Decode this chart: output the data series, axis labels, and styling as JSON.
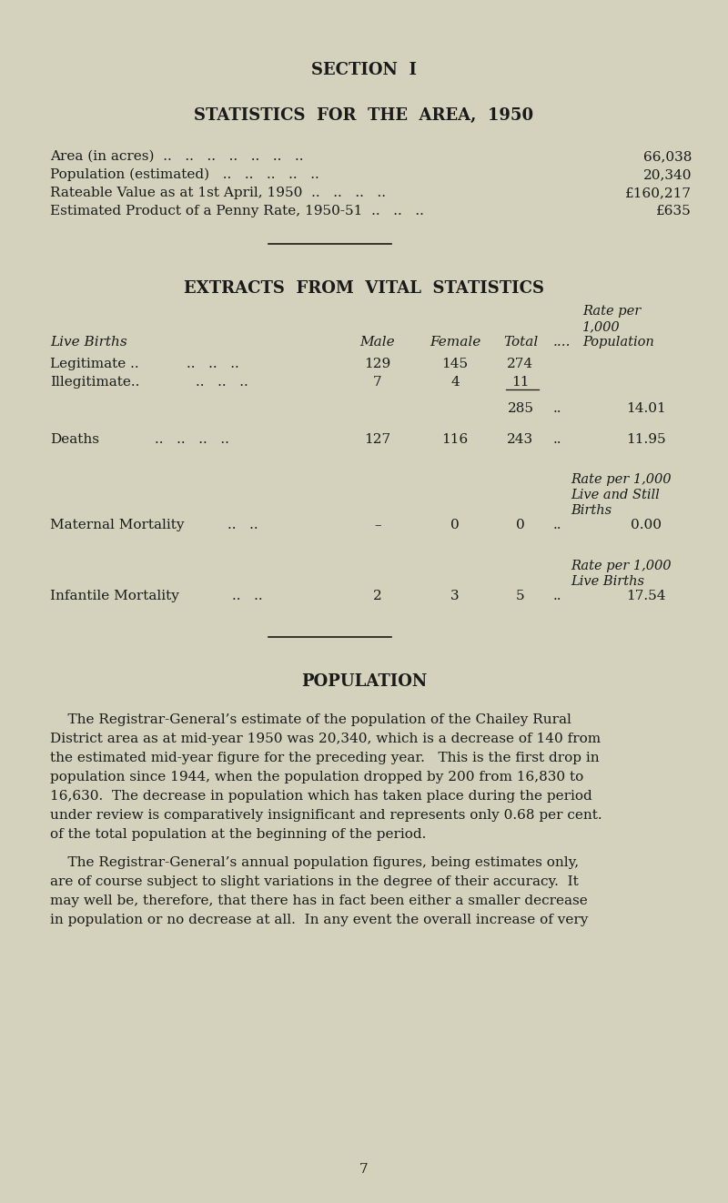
{
  "bg_color": "#d4d1bc",
  "text_color": "#1a1a1a",
  "section_title": "SECTION  I",
  "stats_title": "STATISTICS  FOR  THE  AREA,  1950",
  "stats_rows": [
    {
      "label": "Area (in acres)  ..   ..   ..   ..   ..   ..   ..",
      "value": "66,038"
    },
    {
      "label": "Population (estimated)   ..   ..   ..   ..   ..",
      "value": "20,340"
    },
    {
      "label": "Rateable Value as at 1st April, 1950  ..   ..   ..   ..",
      "value": "£160,217"
    },
    {
      "label": "Estimated Product of a Penny Rate, 1950-51  ..   ..   ..",
      "value": "£635"
    }
  ],
  "vital_title": "EXTRACTS  FROM  VITAL  STATISTICS",
  "live_births_label": "Live Births",
  "vital_header_rate": "Rate per",
  "vital_header_1000": "1,000",
  "vital_header_pop": "Population",
  "legitimate_label": "Legitimate ..",
  "legitimate_dots": "..   ..   ..",
  "legitimate_vals": [
    "129",
    "145",
    "274"
  ],
  "illegitimate_label": "Illegitimate..",
  "illegitimate_dots": "..   ..   ..",
  "illegitimate_vals": [
    "7",
    "4",
    "11"
  ],
  "subtotal_val": "285",
  "subtotal_dots": "..",
  "subtotal_rate": "14.01",
  "deaths_label": "Deaths",
  "deaths_dots": "..   ..   ..   ..",
  "deaths_vals": [
    "127",
    "116",
    "243"
  ],
  "deaths_dots2": "..",
  "deaths_rate": "11.95",
  "maternal_header1": "Rate per 1,000",
  "maternal_header2": "Live and Still",
  "maternal_header3": "Births",
  "maternal_label": "Maternal Mortality",
  "maternal_dots": "..   ..",
  "maternal_vals": [
    "–",
    "0",
    "0"
  ],
  "maternal_dots2": "..",
  "maternal_rate": "0.00",
  "infantile_header1": "Rate per 1,000",
  "infantile_header2": "Live Births",
  "infantile_label": "Infantile Mortality",
  "infantile_dots": "..   ..",
  "infantile_vals": [
    "2",
    "3",
    "5"
  ],
  "infantile_dots2": "..",
  "infantile_rate": "17.54",
  "pop_title": "POPULATION",
  "pop_para1": "The Registrar-General’s estimate of the population of the Chailey Rural District area as at mid-year 1950 was 20,340, which is a decrease of 140 from the estimated mid-year figure for the preceding year.   This is the first drop in population since 1944, when the population dropped by 200 from 16,830 to 16,630.  The decrease in population which has taken place during the period under review is comparatively insignificant and represents only 0.68 per cent. of the total population at the beginning of the period.",
  "pop_para2": "The Registrar-General’s annual population figures, being estimates only, are of course subject to slight variations in the degree of their accuracy.  It may well be, therefore, that there has in fact been either a smaller decrease in population or no decrease at all.  In any event the overall increase of very",
  "page_number": "7",
  "figwidth": 8.0,
  "figheight": 13.22,
  "dpi": 100
}
